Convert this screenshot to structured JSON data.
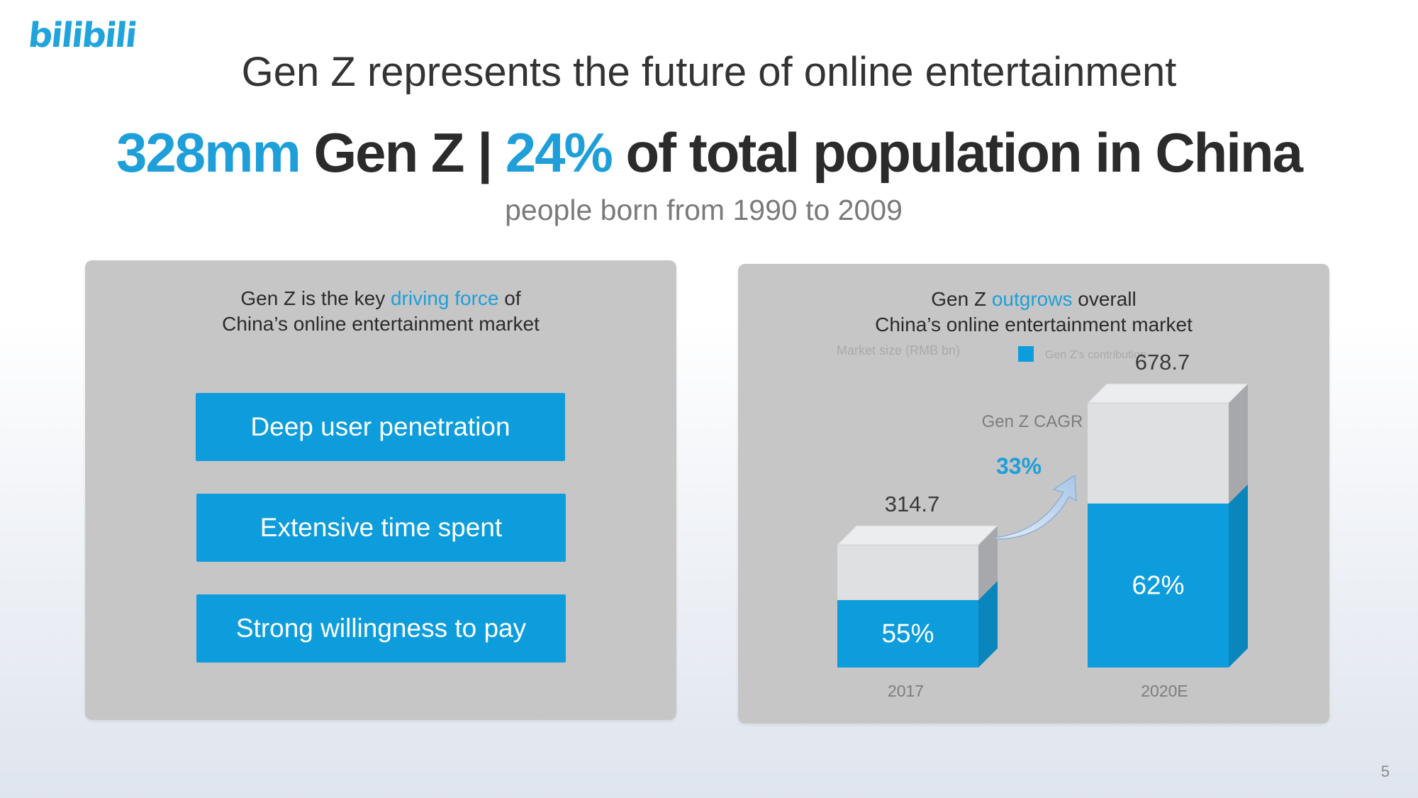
{
  "brand": {
    "logo_text": "bilibili"
  },
  "header": {
    "title": "Gen Z represents the future of online entertainment",
    "headline_part1": "328mm",
    "headline_part2": " Gen Z | ",
    "headline_part3": "24%",
    "headline_part4": " of total population in China",
    "subtitle": "people born from 1990 to 2009"
  },
  "left_panel": {
    "heading_line1_pre": "Gen Z is the key ",
    "heading_line1_highlight": "driving force",
    "heading_line1_post": " of",
    "heading_line2": "China’s online entertainment market",
    "items": [
      {
        "label": "Deep user penetration"
      },
      {
        "label": "Extensive time spent"
      },
      {
        "label": "Strong willingness to pay"
      }
    ]
  },
  "right_panel": {
    "heading_line1_pre": "Gen Z ",
    "heading_line1_highlight": "outgrows",
    "heading_line1_post": " overall",
    "heading_line2": "China’s online entertainment market"
  },
  "chart_data": {
    "type": "bar",
    "title": "Gen Z outgrows overall China’s online entertainment market",
    "ylabel": "Market size (RMB bn)",
    "legend": [
      {
        "name": "Gen Z’s contribution",
        "color": "#0e9ddc"
      }
    ],
    "categories": [
      "2017",
      "2020E"
    ],
    "totals": [
      314.7,
      678.7
    ],
    "genz_share_pct": [
      55,
      62
    ],
    "total_labels": [
      "314.7",
      "678.7"
    ],
    "share_labels": [
      "55%",
      "62%"
    ],
    "cagr_label": "Gen Z CAGR",
    "cagr_value": "33%",
    "ylim": [
      0,
      700
    ],
    "colors": {
      "genz": "#0e9ddc",
      "genz_side": "#0a86bd",
      "rest": "#dfe0e2",
      "rest_side": "#a6a8ab",
      "top": "#ecedee"
    }
  },
  "footer": {
    "page_number": "5"
  }
}
